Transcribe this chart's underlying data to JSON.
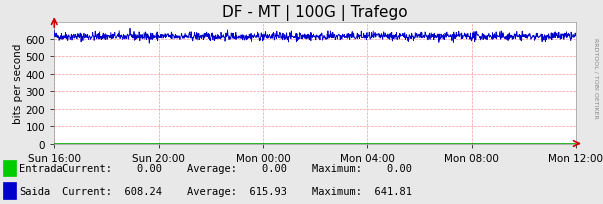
{
  "title": "DF - MT | 100G | Trafego",
  "ylabel": "bits per second",
  "x_tick_labels": [
    "Sun 16:00",
    "Sun 20:00",
    "Mon 00:00",
    "Mon 04:00",
    "Mon 08:00",
    "Mon 12:00"
  ],
  "ylim": [
    0,
    700
  ],
  "yticks": [
    0,
    100,
    200,
    300,
    400,
    500,
    600
  ],
  "background_color": "#e8e8e8",
  "plot_background": "#ffffff",
  "grid_color": "#ff9999",
  "line_color_saida": "#0000cc",
  "line_color_entrada": "#00aa00",
  "title_fontsize": 11,
  "axis_fontsize": 7.5,
  "tick_fontsize": 7.5,
  "saida_mean": 615.0,
  "saida_amplitude": 12.0,
  "n_points": 1440,
  "legend": [
    {
      "label": "Entrada",
      "color": "#00cc00",
      "current": "0.00",
      "average": "0.00",
      "maximum": "0.00"
    },
    {
      "label": "Saida",
      "color": "#0000cc",
      "current": "608.24",
      "average": "615.93",
      "maximum": "641.81"
    }
  ],
  "watermark": "RRDTOOL / TOBI OETIKER",
  "arrow_color": "#cc0000",
  "n_xticks": 6
}
